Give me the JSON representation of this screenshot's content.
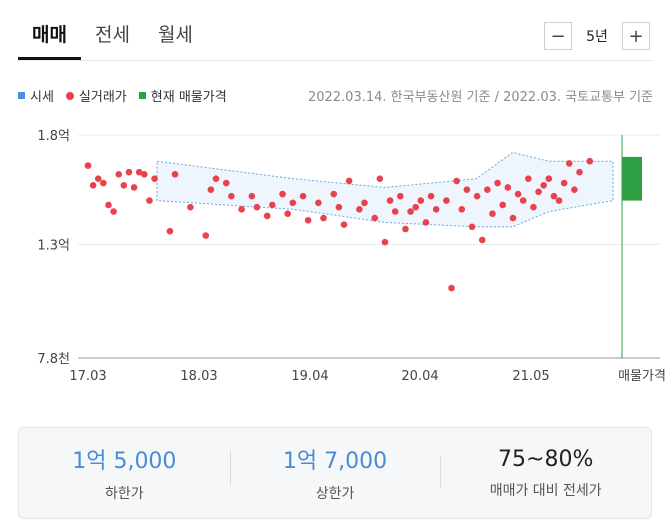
{
  "tabs": [
    {
      "label": "매매",
      "active": true
    },
    {
      "label": "전세",
      "active": false
    },
    {
      "label": "월세",
      "active": false
    }
  ],
  "period": {
    "minus": "−",
    "label": "5년",
    "plus": "+"
  },
  "legend": [
    {
      "label": "시세",
      "color": "#4a90e2",
      "shape": "square"
    },
    {
      "label": "실거래가",
      "color": "#e8434c",
      "shape": "dot"
    },
    {
      "label": "현재 매물가격",
      "color": "#2ea043",
      "shape": "square"
    }
  ],
  "source_text": "2022.03.14. 한국부동산원 기준 / 2022.03. 국토교통부 기준",
  "chart_data": {
    "type": "scatter",
    "y_ticks": [
      "1.8억",
      "1.3억",
      "7.8천"
    ],
    "x_ticks": [
      "17.03",
      "18.03",
      "19.04",
      "20.04",
      "21.05",
      "매물가격"
    ],
    "y_range_eok": [
      0.78,
      1.8
    ],
    "listing_band_eok": [
      1.5,
      1.7
    ],
    "market_band": [
      {
        "t": 0.0,
        "lo": 1.5,
        "hi": 1.68
      },
      {
        "t": 0.3,
        "lo": 1.46,
        "hi": 1.6
      },
      {
        "t": 0.5,
        "lo": 1.4,
        "hi": 1.56
      },
      {
        "t": 0.7,
        "lo": 1.38,
        "hi": 1.6
      },
      {
        "t": 0.78,
        "lo": 1.38,
        "hi": 1.72
      },
      {
        "t": 0.86,
        "lo": 1.45,
        "hi": 1.68
      },
      {
        "t": 1.0,
        "lo": 1.5,
        "hi": 1.68
      }
    ],
    "transactions_eok": [
      [
        0.0,
        1.66
      ],
      [
        0.01,
        1.57
      ],
      [
        0.02,
        1.6
      ],
      [
        0.03,
        1.58
      ],
      [
        0.04,
        1.48
      ],
      [
        0.05,
        1.45
      ],
      [
        0.06,
        1.62
      ],
      [
        0.07,
        1.57
      ],
      [
        0.08,
        1.63
      ],
      [
        0.09,
        1.56
      ],
      [
        0.1,
        1.63
      ],
      [
        0.11,
        1.62
      ],
      [
        0.12,
        1.5
      ],
      [
        0.13,
        1.6
      ],
      [
        0.16,
        1.36
      ],
      [
        0.17,
        1.62
      ],
      [
        0.2,
        1.47
      ],
      [
        0.23,
        1.34
      ],
      [
        0.24,
        1.55
      ],
      [
        0.25,
        1.6
      ],
      [
        0.27,
        1.58
      ],
      [
        0.28,
        1.52
      ],
      [
        0.3,
        1.46
      ],
      [
        0.32,
        1.52
      ],
      [
        0.33,
        1.47
      ],
      [
        0.35,
        1.43
      ],
      [
        0.36,
        1.48
      ],
      [
        0.38,
        1.53
      ],
      [
        0.39,
        1.44
      ],
      [
        0.4,
        1.49
      ],
      [
        0.42,
        1.52
      ],
      [
        0.43,
        1.41
      ],
      [
        0.45,
        1.49
      ],
      [
        0.46,
        1.42
      ],
      [
        0.48,
        1.53
      ],
      [
        0.49,
        1.47
      ],
      [
        0.5,
        1.39
      ],
      [
        0.51,
        1.59
      ],
      [
        0.53,
        1.46
      ],
      [
        0.54,
        1.49
      ],
      [
        0.56,
        1.42
      ],
      [
        0.57,
        1.6
      ],
      [
        0.58,
        1.31
      ],
      [
        0.59,
        1.5
      ],
      [
        0.6,
        1.45
      ],
      [
        0.61,
        1.52
      ],
      [
        0.62,
        1.37
      ],
      [
        0.63,
        1.45
      ],
      [
        0.64,
        1.47
      ],
      [
        0.65,
        1.5
      ],
      [
        0.66,
        1.4
      ],
      [
        0.67,
        1.52
      ],
      [
        0.68,
        1.46
      ],
      [
        0.7,
        1.5
      ],
      [
        0.71,
        1.1
      ],
      [
        0.72,
        1.59
      ],
      [
        0.73,
        1.46
      ],
      [
        0.74,
        1.55
      ],
      [
        0.75,
        1.38
      ],
      [
        0.76,
        1.52
      ],
      [
        0.77,
        1.32
      ],
      [
        0.78,
        1.55
      ],
      [
        0.79,
        1.44
      ],
      [
        0.8,
        1.58
      ],
      [
        0.81,
        1.48
      ],
      [
        0.82,
        1.56
      ],
      [
        0.83,
        1.42
      ],
      [
        0.84,
        1.53
      ],
      [
        0.85,
        1.5
      ],
      [
        0.86,
        1.6
      ],
      [
        0.87,
        1.47
      ],
      [
        0.88,
        1.54
      ],
      [
        0.89,
        1.57
      ],
      [
        0.9,
        1.6
      ],
      [
        0.91,
        1.52
      ],
      [
        0.92,
        1.5
      ],
      [
        0.93,
        1.58
      ],
      [
        0.94,
        1.67
      ],
      [
        0.95,
        1.55
      ],
      [
        0.96,
        1.63
      ],
      [
        0.98,
        1.68
      ]
    ]
  },
  "summary": [
    {
      "value": "1억 5,000",
      "label": "하한가",
      "highlight": true
    },
    {
      "value": "1억 7,000",
      "label": "상한가",
      "highlight": true
    },
    {
      "value": "75~80%",
      "label": "매매가 대비 전세가",
      "highlight": false
    }
  ]
}
